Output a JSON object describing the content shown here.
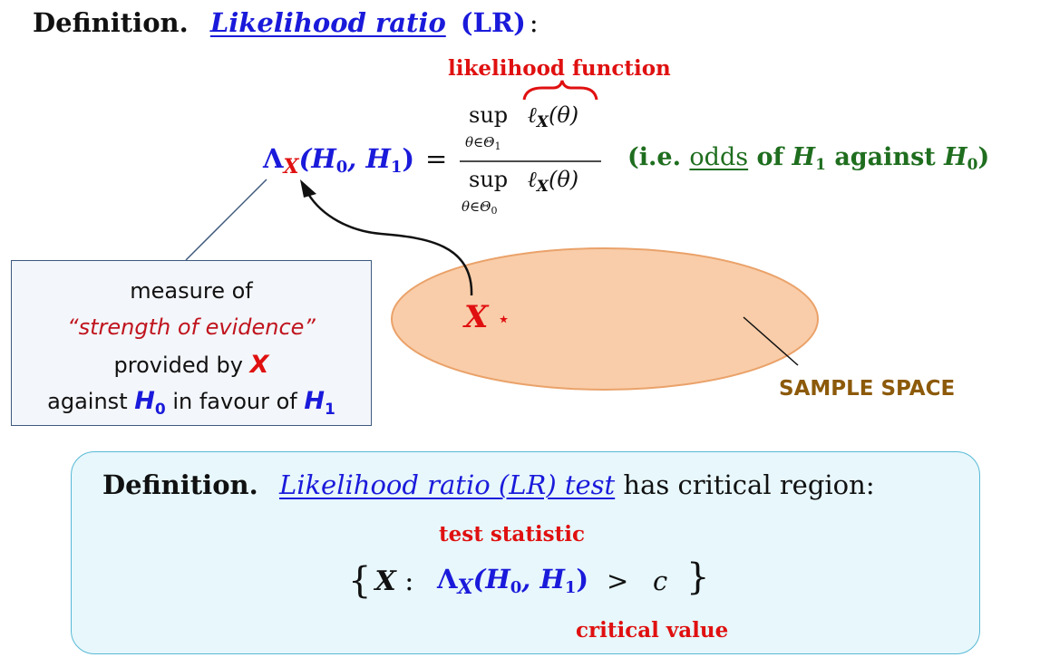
{
  "definition_lr": {
    "prefix": "Definition.",
    "term": "Likelihood ratio",
    "abbr": "(LR)",
    "colon": ":"
  },
  "formula": {
    "lambda": "Λ",
    "subscript": "X",
    "args": "(H",
    "h0_sub": "0",
    "comma": ", H",
    "h1_sub": "1",
    "close": ")",
    "equals": "=",
    "sup": "sup",
    "numerator_sub": "θ∈Θ",
    "numerator_sub_idx": "1",
    "denominator_sub": "θ∈Θ",
    "denominator_sub_idx": "0",
    "ell": "ℓ",
    "ell_sub": "X",
    "ell_arg": "(θ)",
    "brace_label": "likelihood function"
  },
  "interpretation": {
    "prefix": "(i.e.",
    "odds": "odds",
    "of": "of",
    "h1": "H",
    "h1_sub": "1",
    "against": "against",
    "h0": "H",
    "h0_sub": "0",
    "close": ")"
  },
  "evidence_box": {
    "line1": "measure of",
    "line2": "“strength of evidence”",
    "line3_prefix": "provided by",
    "line3_x": "X",
    "line4_prefix": "against",
    "line4_h0": "H",
    "line4_h0_sub": "0",
    "line4_mid": "in favour of",
    "line4_h1": "H",
    "line4_h1_sub": "1"
  },
  "sample_space": {
    "point_label": "X",
    "star": "⋆",
    "label": "SAMPLE SPACE"
  },
  "definition_test": {
    "prefix": "Definition.",
    "term": "Likelihood ratio (LR) test",
    "suffix": "has critical region:",
    "brace_top_label": "test statistic",
    "set_x": "X",
    "set_colon": ":",
    "lambda": "Λ",
    "lambda_sub": "X",
    "args": "(H",
    "h0_sub": "0",
    "comma": ", H",
    "h1_sub": "1",
    "close": ")",
    "gt": ">",
    "c": "c",
    "brace_bottom_label": "critical value"
  },
  "colors": {
    "blue": "#1a1adb",
    "red": "#e01010",
    "green": "#1f6e1f",
    "brown": "#8c5a0a",
    "ellipse_fill": "#f9cda9",
    "box_border": "#3e5a7e",
    "lr_box_fill": "#e7f7fb",
    "lr_box_border": "#57b9d6"
  }
}
